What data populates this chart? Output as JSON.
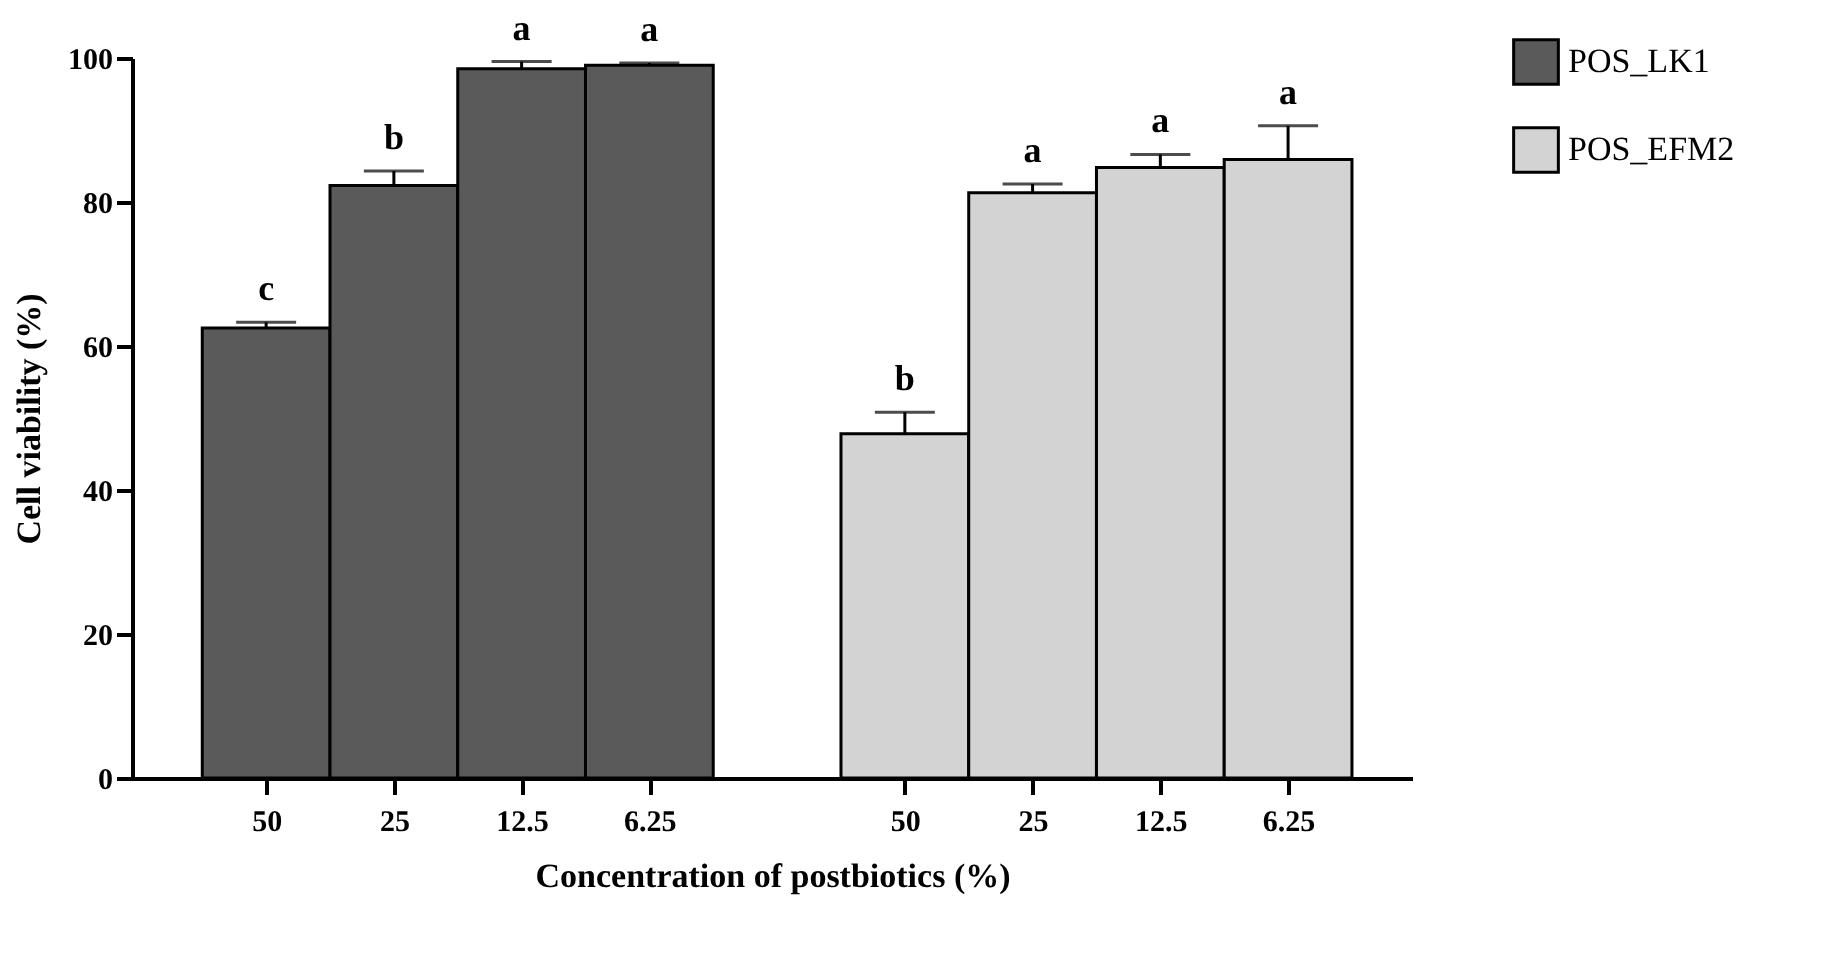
{
  "chart_data": {
    "type": "bar",
    "xlabel": "Concentration of postbiotics (%)",
    "ylabel": "Cell viability (%)",
    "categories": [
      "50",
      "25",
      "12.5",
      "6.25",
      "50",
      "25",
      "12.5",
      "6.25"
    ],
    "series": [
      {
        "name": "POS_LK1",
        "color": "#5a5a5a",
        "values": [
          62.5,
          82.3,
          98.5,
          99.0,
          null,
          null,
          null,
          null
        ],
        "errors": [
          0.8,
          2.0,
          1.0,
          0.3,
          null,
          null,
          null,
          null
        ],
        "value_labels": [
          "c",
          "b",
          "a",
          "a",
          null,
          null,
          null,
          null
        ]
      },
      {
        "name": "POS_EFM2",
        "color": "#d3d3d3",
        "values": [
          null,
          null,
          null,
          null,
          47.8,
          81.3,
          84.8,
          85.9
        ],
        "errors": [
          null,
          null,
          null,
          null,
          3.0,
          1.2,
          1.8,
          4.7
        ],
        "value_labels": [
          null,
          null,
          null,
          null,
          "b",
          "a",
          "a",
          "a"
        ]
      }
    ],
    "ylim": [
      0,
      100
    ],
    "yticks": [
      0,
      20,
      40,
      60,
      80,
      100
    ],
    "grid": false,
    "legend": "top right"
  }
}
